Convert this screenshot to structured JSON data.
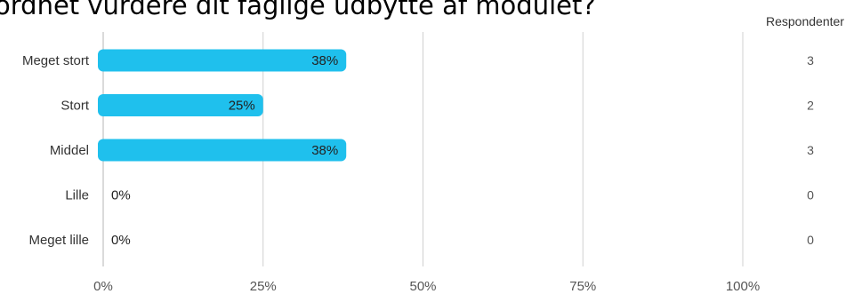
{
  "chart_data": {
    "type": "bar",
    "orientation": "horizontal",
    "title": "ordnet vurdere dit faglige udbytte af modulet?",
    "categories": [
      "Meget stort",
      "Stort",
      "Middel",
      "Lille",
      "Meget lille"
    ],
    "values": [
      38,
      25,
      38,
      0,
      0
    ],
    "value_labels": [
      "38%",
      "25%",
      "38%",
      "0%",
      "0%"
    ],
    "respondents_header": "Respondenter",
    "respondents": [
      "3",
      "2",
      "3",
      "0",
      "0"
    ],
    "x_ticks": [
      "0%",
      "25%",
      "50%",
      "75%",
      "100%"
    ],
    "xlim": [
      0,
      100
    ],
    "grid": true,
    "bar_color": "#1fc0ed"
  }
}
